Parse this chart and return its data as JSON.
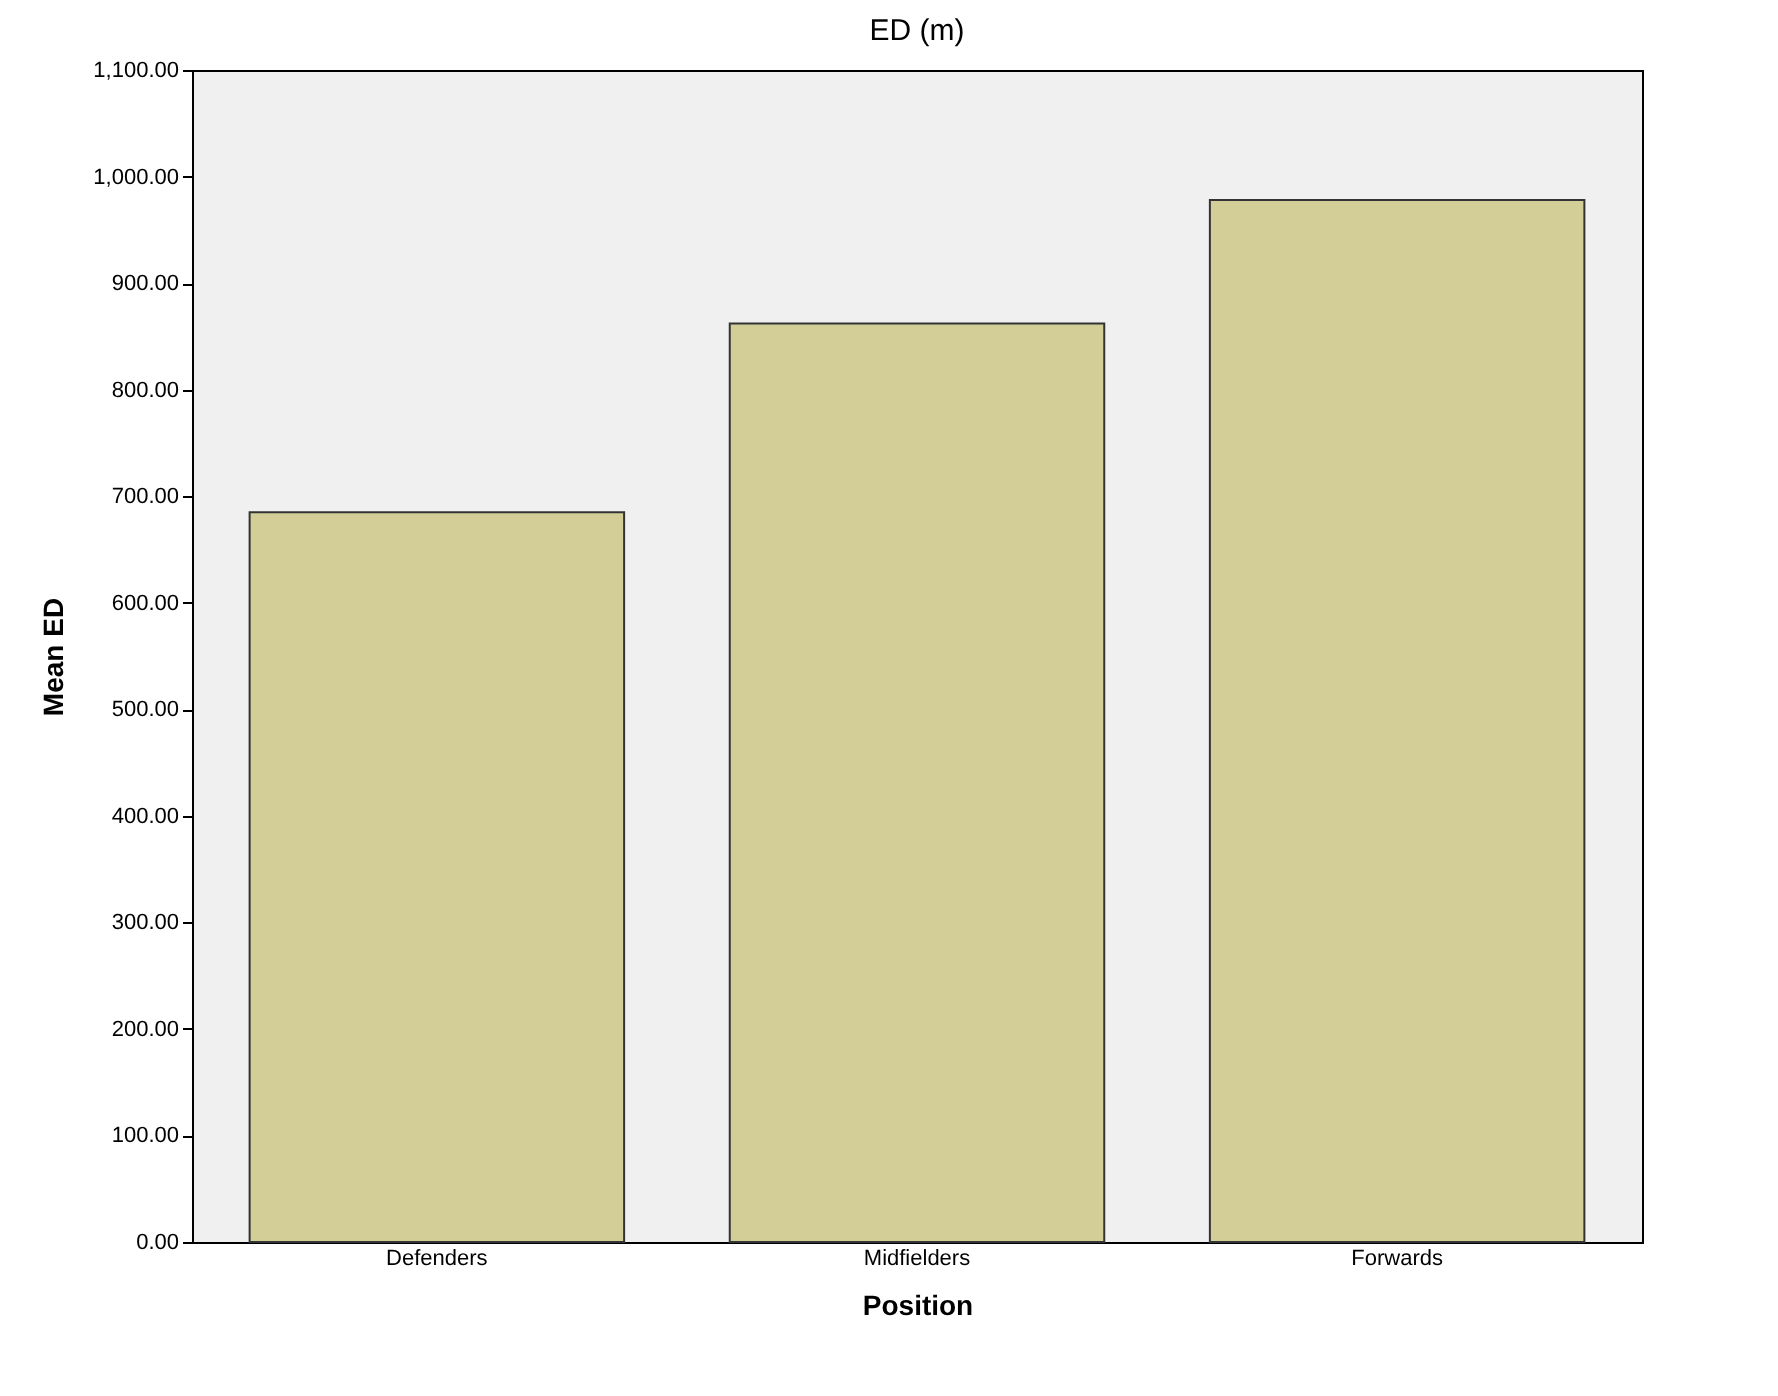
{
  "chart_data": {
    "type": "bar",
    "title": "ED (m)",
    "xlabel": "Position",
    "ylabel": "Mean ED",
    "categories": [
      "Defenders",
      "Midfielders",
      "Forwards"
    ],
    "values": [
      685,
      862,
      978
    ],
    "color": "#d3ce97",
    "ylim": [
      0,
      1100
    ],
    "yticks": [
      {
        "value": 0,
        "label": "0.00"
      },
      {
        "value": 100,
        "label": "100.00"
      },
      {
        "value": 200,
        "label": "200.00"
      },
      {
        "value": 300,
        "label": "300.00"
      },
      {
        "value": 400,
        "label": "400.00"
      },
      {
        "value": 500,
        "label": "500.00"
      },
      {
        "value": 600,
        "label": "600.00"
      },
      {
        "value": 700,
        "label": "700.00"
      },
      {
        "value": 800,
        "label": "800.00"
      },
      {
        "value": 900,
        "label": "900.00"
      },
      {
        "value": 1000,
        "label": "1,000.00"
      },
      {
        "value": 1100,
        "label": "1,100.00"
      }
    ],
    "grid": false
  }
}
